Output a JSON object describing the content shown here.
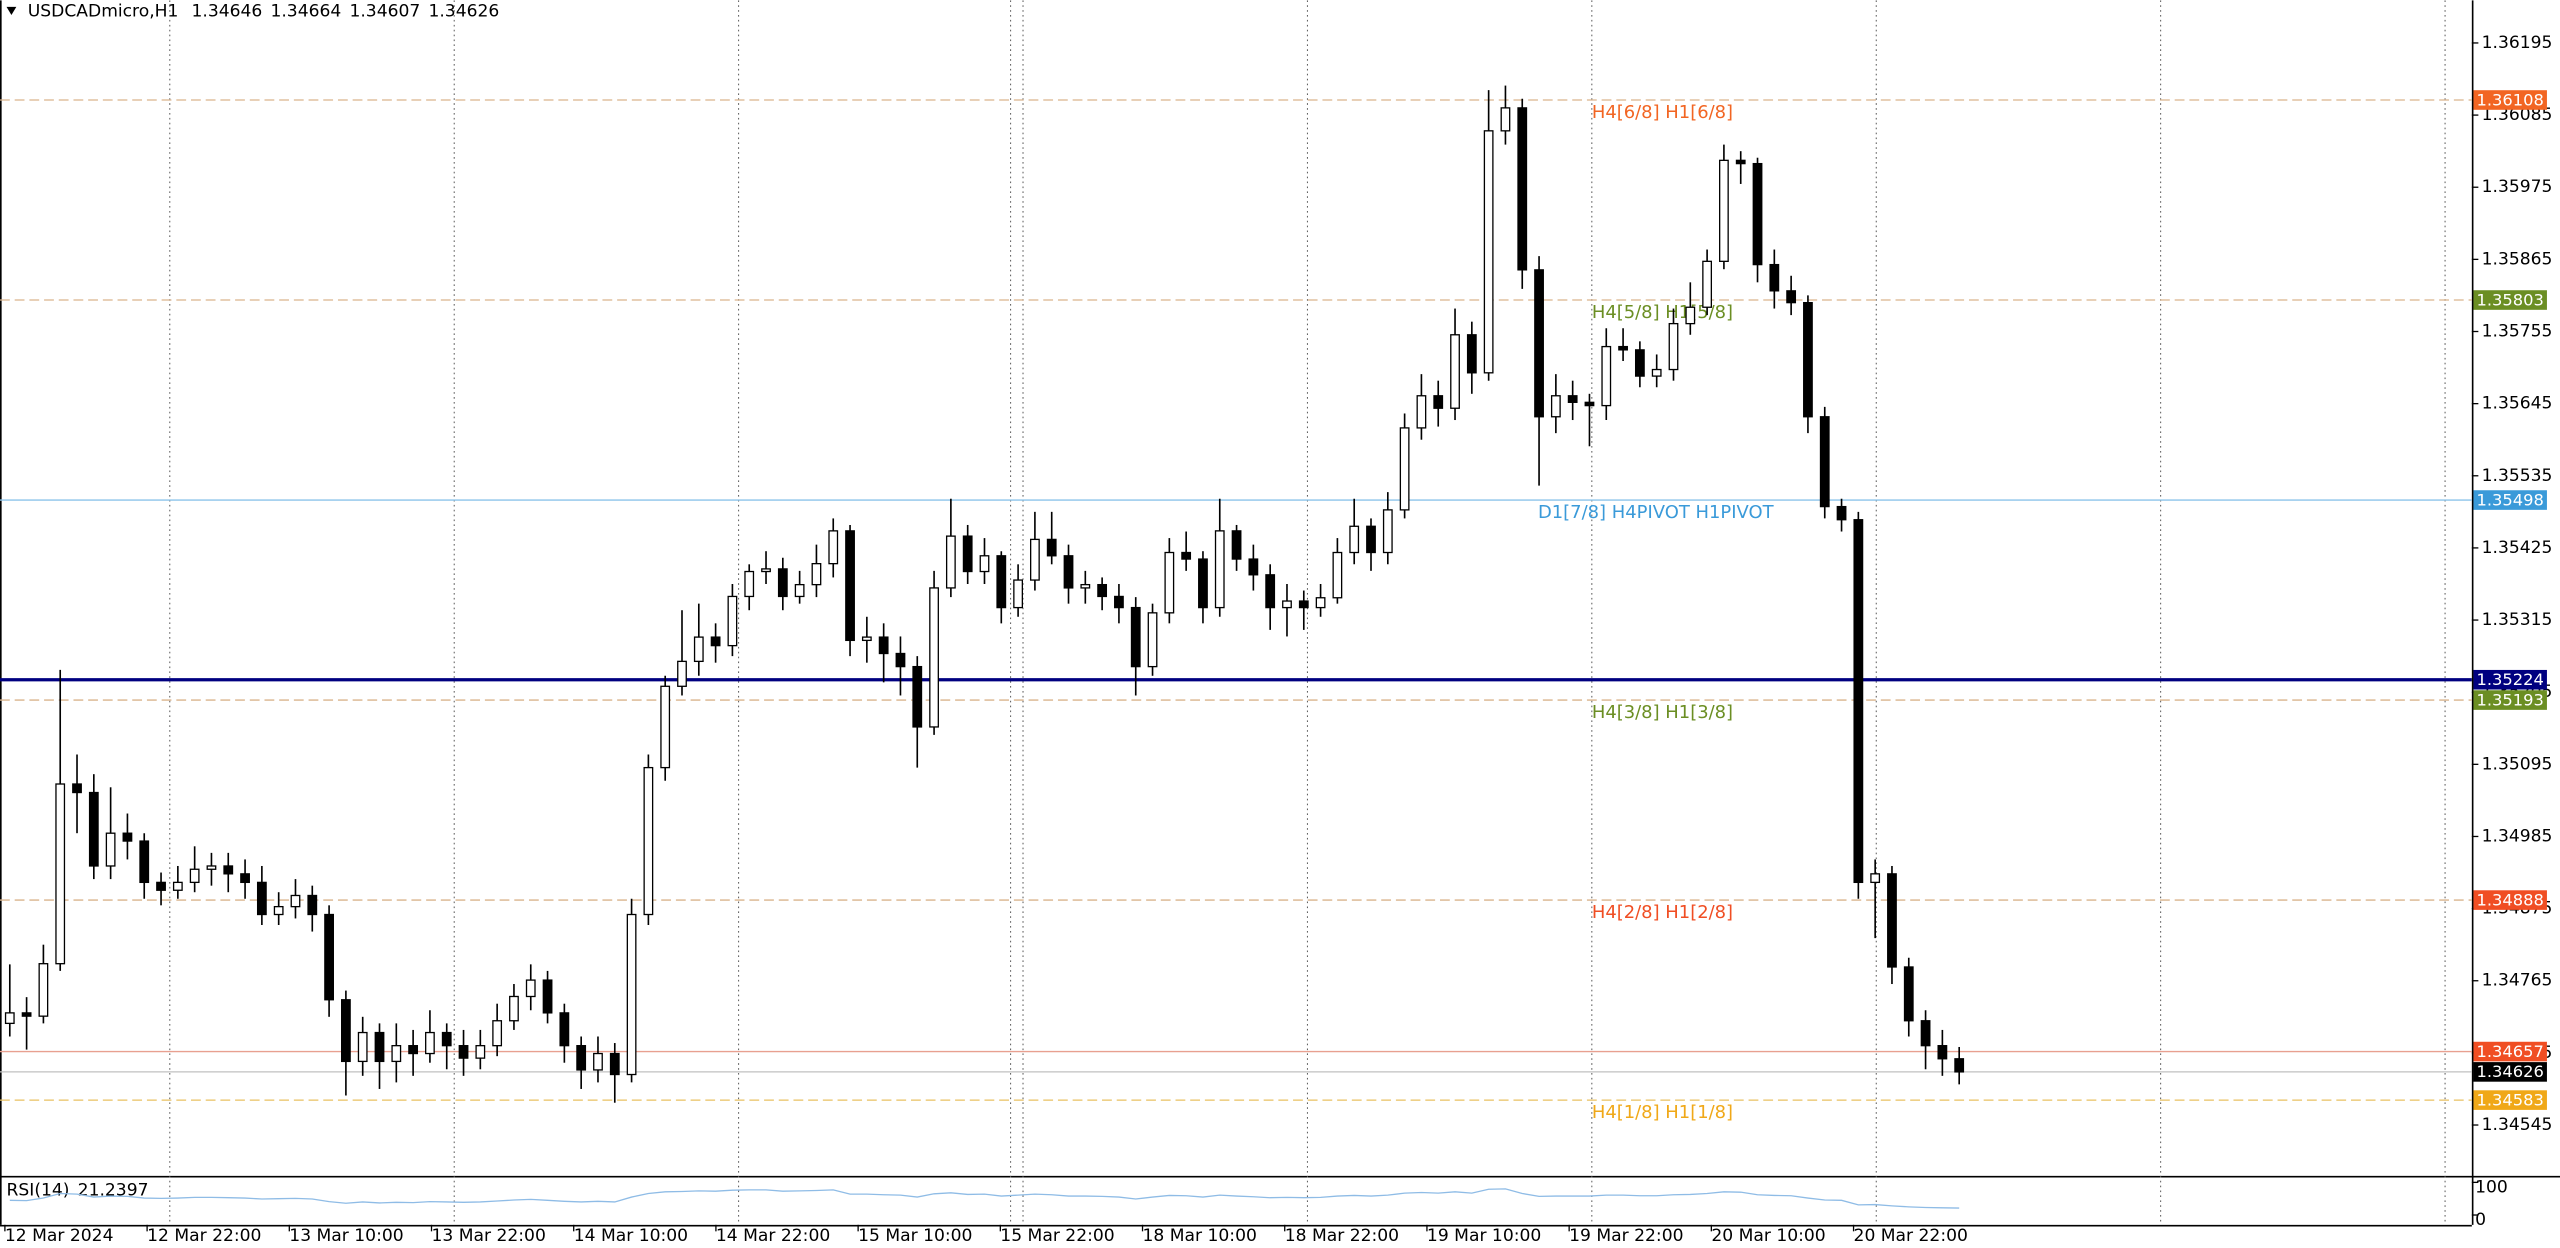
{
  "chart_data": {
    "type": "candlestick",
    "symbol": "USDCADmicro,H1",
    "x_labels": [
      "12 Mar 2024",
      "12 Mar 22:00",
      "13 Mar 10:00",
      "13 Mar 22:00",
      "14 Mar 10:00",
      "14 Mar 22:00",
      "15 Mar 10:00",
      "15 Mar 22:00",
      "18 Mar 10:00",
      "18 Mar 22:00",
      "19 Mar 10:00",
      "19 Mar 22:00",
      "20 Mar 10:00",
      "20 Mar 22:00"
    ],
    "ylim": [
      1.3447,
      1.3626
    ],
    "yticks": [
      1.36195,
      1.36085,
      1.35975,
      1.35865,
      1.35755,
      1.35645,
      1.35535,
      1.35425,
      1.35315,
      1.35205,
      1.35095,
      1.34985,
      1.34875,
      1.34765,
      1.34655,
      1.34545
    ],
    "grid": true,
    "up_color": "#ffffff",
    "down_color": "#000000",
    "candles": [
      [
        1.347,
        1.3479,
        1.3468,
        1.34716
      ],
      [
        1.34716,
        1.3474,
        1.3466,
        1.34711
      ],
      [
        1.34711,
        1.3482,
        1.347,
        1.34791
      ],
      [
        1.34791,
        1.35239,
        1.3478,
        1.35065
      ],
      [
        1.35065,
        1.3511,
        1.3499,
        1.35052
      ],
      [
        1.35052,
        1.3508,
        1.3492,
        1.3494
      ],
      [
        1.3494,
        1.3506,
        1.3492,
        1.3499
      ],
      [
        1.3499,
        1.3502,
        1.3495,
        1.34978
      ],
      [
        1.34978,
        1.3499,
        1.3489,
        1.34915
      ],
      [
        1.34915,
        1.3493,
        1.3488,
        1.34903
      ],
      [
        1.34903,
        1.3494,
        1.3489,
        1.34915
      ],
      [
        1.34915,
        1.3497,
        1.349,
        1.34935
      ],
      [
        1.34935,
        1.3496,
        1.3491,
        1.3494
      ],
      [
        1.3494,
        1.3496,
        1.349,
        1.34928
      ],
      [
        1.34928,
        1.3495,
        1.3489,
        1.34915
      ],
      [
        1.34915,
        1.3494,
        1.3485,
        1.34866
      ],
      [
        1.34866,
        1.349,
        1.3485,
        1.34878
      ],
      [
        1.34878,
        1.3492,
        1.3486,
        1.34895
      ],
      [
        1.34895,
        1.3491,
        1.3484,
        1.34866
      ],
      [
        1.34866,
        1.3488,
        1.3471,
        1.34736
      ],
      [
        1.34736,
        1.3475,
        1.3459,
        1.34642
      ],
      [
        1.34642,
        1.3471,
        1.3462,
        1.34686
      ],
      [
        1.34686,
        1.347,
        1.346,
        1.34642
      ],
      [
        1.34642,
        1.347,
        1.3461,
        1.34666
      ],
      [
        1.34666,
        1.3469,
        1.3462,
        1.34654
      ],
      [
        1.34654,
        1.3472,
        1.3464,
        1.34686
      ],
      [
        1.34686,
        1.347,
        1.3463,
        1.34666
      ],
      [
        1.34666,
        1.3469,
        1.3462,
        1.34647
      ],
      [
        1.34647,
        1.3469,
        1.3463,
        1.34666
      ],
      [
        1.34666,
        1.3473,
        1.3465,
        1.34704
      ],
      [
        1.34704,
        1.3476,
        1.3469,
        1.34741
      ],
      [
        1.34741,
        1.3479,
        1.3472,
        1.34766
      ],
      [
        1.34766,
        1.3478,
        1.347,
        1.34716
      ],
      [
        1.34716,
        1.3473,
        1.3464,
        1.34666
      ],
      [
        1.34666,
        1.3468,
        1.346,
        1.34629
      ],
      [
        1.34629,
        1.3468,
        1.3461,
        1.34654
      ],
      [
        1.34654,
        1.3467,
        1.34579,
        1.34622
      ],
      [
        1.34622,
        1.3489,
        1.3461,
        1.34866
      ],
      [
        1.34866,
        1.3511,
        1.3485,
        1.3509
      ],
      [
        1.3509,
        1.3523,
        1.3507,
        1.35214
      ],
      [
        1.35214,
        1.3533,
        1.352,
        1.35252
      ],
      [
        1.35252,
        1.3534,
        1.3523,
        1.35289
      ],
      [
        1.35289,
        1.3531,
        1.3525,
        1.35276
      ],
      [
        1.35276,
        1.3537,
        1.3526,
        1.35351
      ],
      [
        1.35351,
        1.354,
        1.3533,
        1.35389
      ],
      [
        1.35389,
        1.3542,
        1.3537,
        1.35393
      ],
      [
        1.35393,
        1.3541,
        1.3533,
        1.35351
      ],
      [
        1.35351,
        1.3539,
        1.3534,
        1.35369
      ],
      [
        1.35369,
        1.3543,
        1.3535,
        1.35401
      ],
      [
        1.35401,
        1.3547,
        1.3538,
        1.35451
      ],
      [
        1.35451,
        1.3546,
        1.3526,
        1.35284
      ],
      [
        1.35284,
        1.3532,
        1.3525,
        1.35289
      ],
      [
        1.35289,
        1.3531,
        1.3522,
        1.35264
      ],
      [
        1.35264,
        1.3529,
        1.352,
        1.35244
      ],
      [
        1.35244,
        1.3526,
        1.3509,
        1.35152
      ],
      [
        1.35152,
        1.3539,
        1.3514,
        1.35364
      ],
      [
        1.35364,
        1.355,
        1.3535,
        1.35443
      ],
      [
        1.35443,
        1.3546,
        1.3537,
        1.35389
      ],
      [
        1.35389,
        1.3544,
        1.3537,
        1.35413
      ],
      [
        1.35413,
        1.3542,
        1.3531,
        1.35334
      ],
      [
        1.35334,
        1.354,
        1.3532,
        1.35376
      ],
      [
        1.35376,
        1.3548,
        1.3536,
        1.35438
      ],
      [
        1.35438,
        1.3548,
        1.354,
        1.35413
      ],
      [
        1.35413,
        1.3543,
        1.3534,
        1.35364
      ],
      [
        1.35364,
        1.3539,
        1.3534,
        1.35369
      ],
      [
        1.35369,
        1.3538,
        1.3533,
        1.35351
      ],
      [
        1.35351,
        1.3537,
        1.3531,
        1.35334
      ],
      [
        1.35334,
        1.3535,
        1.352,
        1.35244
      ],
      [
        1.35244,
        1.3534,
        1.3523,
        1.35326
      ],
      [
        1.35326,
        1.3544,
        1.3531,
        1.35418
      ],
      [
        1.35418,
        1.3545,
        1.3539,
        1.35408
      ],
      [
        1.35408,
        1.3542,
        1.3531,
        1.35334
      ],
      [
        1.35334,
        1.355,
        1.3532,
        1.35451
      ],
      [
        1.35451,
        1.3546,
        1.3539,
        1.35408
      ],
      [
        1.35408,
        1.3543,
        1.3536,
        1.35384
      ],
      [
        1.35384,
        1.354,
        1.353,
        1.35334
      ],
      [
        1.35334,
        1.3537,
        1.3529,
        1.35344
      ],
      [
        1.35344,
        1.3536,
        1.353,
        1.35334
      ],
      [
        1.35334,
        1.3537,
        1.3532,
        1.35349
      ],
      [
        1.35349,
        1.3544,
        1.3534,
        1.35418
      ],
      [
        1.35418,
        1.355,
        1.354,
        1.35458
      ],
      [
        1.35458,
        1.3547,
        1.3539,
        1.35418
      ],
      [
        1.35418,
        1.3551,
        1.354,
        1.35483
      ],
      [
        1.35483,
        1.3563,
        1.3547,
        1.35608
      ],
      [
        1.35608,
        1.3569,
        1.3559,
        1.35657
      ],
      [
        1.35657,
        1.3568,
        1.3561,
        1.35638
      ],
      [
        1.35638,
        1.3579,
        1.3562,
        1.3575
      ],
      [
        1.3575,
        1.3577,
        1.3566,
        1.35692
      ],
      [
        1.35692,
        1.36123,
        1.3568,
        1.36061
      ],
      [
        1.36061,
        1.3613,
        1.3604,
        1.36096
      ],
      [
        1.36096,
        1.3611,
        1.3582,
        1.35849
      ],
      [
        1.35849,
        1.3587,
        1.3552,
        1.35625
      ],
      [
        1.35625,
        1.3569,
        1.356,
        1.35657
      ],
      [
        1.35657,
        1.3568,
        1.3562,
        1.35647
      ],
      [
        1.35647,
        1.3566,
        1.3558,
        1.35642
      ],
      [
        1.35642,
        1.3576,
        1.3562,
        1.35732
      ],
      [
        1.35732,
        1.3576,
        1.3571,
        1.35727
      ],
      [
        1.35727,
        1.3574,
        1.3567,
        1.35687
      ],
      [
        1.35687,
        1.3572,
        1.3567,
        1.35697
      ],
      [
        1.35697,
        1.3579,
        1.3568,
        1.35767
      ],
      [
        1.35767,
        1.3583,
        1.3575,
        1.35792
      ],
      [
        1.35792,
        1.3588,
        1.3578,
        1.35862
      ],
      [
        1.35862,
        1.3604,
        1.3585,
        1.36016
      ],
      [
        1.36016,
        1.3603,
        1.3598,
        1.36011
      ],
      [
        1.36011,
        1.3602,
        1.3583,
        1.35857
      ],
      [
        1.35857,
        1.3588,
        1.3579,
        1.35817
      ],
      [
        1.35817,
        1.3584,
        1.3578,
        1.35799
      ],
      [
        1.35799,
        1.3581,
        1.356,
        1.35625
      ],
      [
        1.35625,
        1.3564,
        1.3547,
        1.35488
      ],
      [
        1.35488,
        1.355,
        1.3545,
        1.35468
      ],
      [
        1.35468,
        1.3548,
        1.3489,
        1.34915
      ],
      [
        1.34915,
        1.3495,
        1.3483,
        1.34928
      ],
      [
        1.34928,
        1.3494,
        1.3476,
        1.34786
      ],
      [
        1.34786,
        1.348,
        1.3468,
        1.34704
      ],
      [
        1.34704,
        1.3472,
        1.3463,
        1.34666
      ],
      [
        1.34666,
        1.3469,
        1.3462,
        1.34646
      ],
      [
        1.34646,
        1.34664,
        1.34607,
        1.34626
      ]
    ],
    "levels": [
      {
        "value": 1.36108,
        "label": "H4[6/8] H1[6/8]",
        "color": "#f26522",
        "line_color": "#d9b38c",
        "style": "dashed"
      },
      {
        "value": 1.35803,
        "label": "H4[5/8] H1[5/8]",
        "color": "#6b8e23",
        "line_color": "#d9b38c",
        "style": "dashed"
      },
      {
        "value": 1.35498,
        "label": "D1[7/8] H4PIVOT H1PIVOT",
        "color": "#3a9ad9",
        "line_color": "#8cc4ea",
        "style": "solid"
      },
      {
        "value": 1.35224,
        "color": "#000080",
        "line_color": "#000080",
        "style": "thick"
      },
      {
        "value": 1.35193,
        "label": "H4[3/8] H1[3/8]",
        "color": "#6b8e23",
        "line_color": "#d9b38c",
        "style": "dashed"
      },
      {
        "value": 1.34888,
        "label": "H4[2/8] H1[2/8]",
        "color": "#f04e23",
        "line_color": "#d9b38c",
        "style": "dashed"
      },
      {
        "value": 1.34657,
        "color": "#f04e23",
        "line_color": "#e8a090",
        "style": "solid"
      },
      {
        "value": 1.34626,
        "color": "#000000",
        "line_color": "#c0c0c0",
        "style": "solid"
      },
      {
        "value": 1.34583,
        "label": "H4[1/8] H1[1/8]",
        "color": "#f0a818",
        "line_color": "#e8c060",
        "style": "dashed"
      }
    ],
    "rsi": {
      "label": "RSI(14)",
      "color": "#8fbce6",
      "ylim": [
        0,
        100
      ],
      "yticks": [
        100,
        0
      ],
      "values": [
        45,
        44,
        52,
        66,
        64,
        55,
        58,
        57,
        52,
        51,
        52,
        54,
        54,
        53,
        52,
        49,
        50,
        51,
        49,
        41,
        36,
        40,
        37,
        39,
        38,
        41,
        40,
        39,
        40,
        43,
        46,
        48,
        45,
        42,
        40,
        42,
        40,
        55,
        66,
        71,
        72,
        74,
        73,
        76,
        77,
        77,
        73,
        74,
        75,
        77,
        64,
        64,
        62,
        61,
        55,
        65,
        68,
        63,
        64,
        58,
        61,
        64,
        62,
        58,
        58,
        57,
        55,
        49,
        55,
        60,
        59,
        55,
        61,
        58,
        56,
        53,
        54,
        53,
        54,
        58,
        60,
        58,
        61,
        67,
        69,
        67,
        71,
        67,
        79,
        80,
        66,
        57,
        58,
        58,
        58,
        61,
        61,
        59,
        59,
        62,
        63,
        66,
        71,
        70,
        62,
        60,
        59,
        52,
        46,
        45,
        31,
        32,
        28,
        25,
        23,
        22,
        21.2397
      ]
    }
  }
}
